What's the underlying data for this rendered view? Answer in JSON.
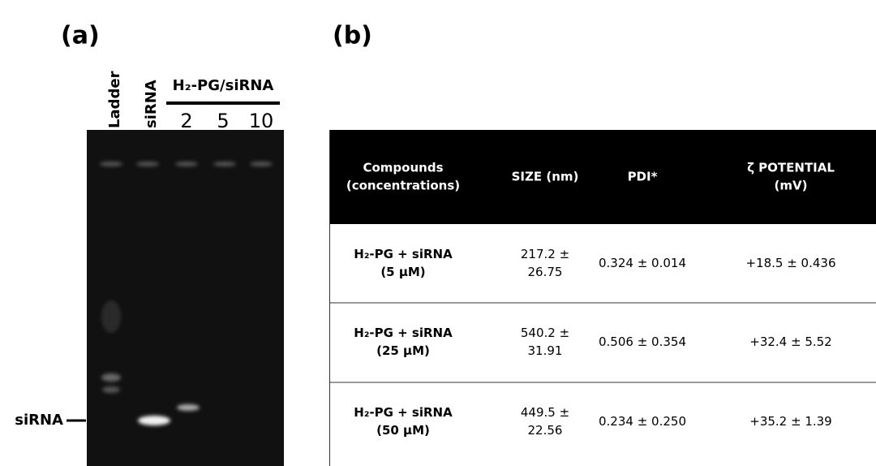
{
  "panels": {
    "a": "(a)",
    "b": "(b)"
  },
  "gel": {
    "lanes": [
      "Ladder",
      "siRNA"
    ],
    "group_label": "H₂-PG/siRNA",
    "group_lanes": [
      "2",
      "5",
      "10"
    ],
    "band_label": "siRNA"
  },
  "table": {
    "header": [
      [
        "Compounds",
        "(concentrations)"
      ],
      [
        "SIZE (nm)"
      ],
      [
        "PDI*"
      ],
      [
        "ζ POTENTIAL",
        "(mV)"
      ]
    ],
    "rows": [
      [
        [
          "H₂-PG + siRNA",
          "(5 μM)"
        ],
        [
          "217.2 ±",
          "26.75"
        ],
        [
          "0.324 ± 0.014"
        ],
        [
          "+18.5 ± 0.436"
        ]
      ],
      [
        [
          "H₂-PG + siRNA",
          "(25 μM)"
        ],
        [
          "540.2 ±",
          "31.91"
        ],
        [
          "0.506 ± 0.354"
        ],
        [
          "+32.4 ± 5.52"
        ]
      ],
      [
        [
          "H₂-PG + siRNA",
          "(50  μM)"
        ],
        [
          "449.5 ±",
          "22.56"
        ],
        [
          "0.234 ± 0.250"
        ],
        [
          "+35.2 ± 1.39"
        ]
      ]
    ]
  }
}
